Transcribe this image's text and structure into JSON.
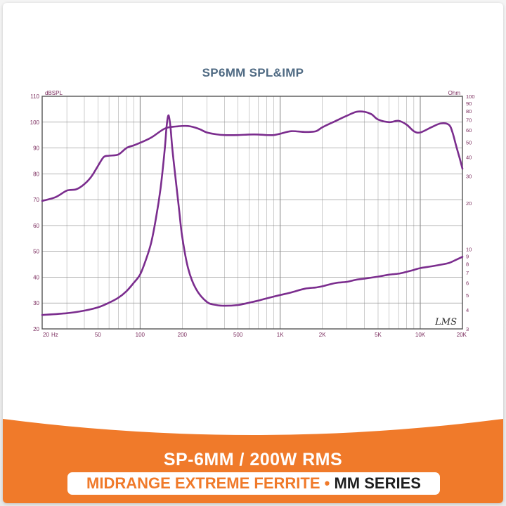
{
  "chart_data": {
    "type": "line",
    "title": "SP6MM SPL&IMP",
    "x_scale": "log",
    "xlim": [
      20,
      20000
    ],
    "x_ticks": [
      {
        "value": 20,
        "label": "20"
      },
      {
        "value": 50,
        "label": "50"
      },
      {
        "value": 100,
        "label": "100"
      },
      {
        "value": 200,
        "label": "200"
      },
      {
        "value": 500,
        "label": "500"
      },
      {
        "value": 1000,
        "label": "1K"
      },
      {
        "value": 2000,
        "label": "2K"
      },
      {
        "value": 5000,
        "label": "5K"
      },
      {
        "value": 10000,
        "label": "10K"
      },
      {
        "value": 20000,
        "label": "20K"
      }
    ],
    "x_unit": "Hz",
    "y_left": {
      "label": "dBSPL",
      "lim": [
        20,
        110
      ],
      "ticks": [
        20,
        30,
        40,
        50,
        60,
        70,
        80,
        90,
        100,
        110
      ]
    },
    "y_right": {
      "label": "Ohm",
      "scale": "log",
      "lim": [
        3,
        100
      ],
      "ticks": [
        3,
        4,
        5,
        6,
        7,
        8,
        9,
        10,
        20,
        30,
        40,
        50,
        60,
        70,
        80,
        90,
        100
      ]
    },
    "grid": true,
    "watermark": "LMS",
    "series": [
      {
        "color": "#7b2d8e",
        "axis": "left",
        "x": [
          20,
          25,
          30,
          35,
          40,
          45,
          50,
          55,
          60,
          70,
          80,
          90,
          100,
          120,
          150,
          180,
          220,
          260,
          300,
          350,
          400,
          500,
          600,
          700,
          800,
          900,
          1000,
          1200,
          1500,
          1800,
          2000,
          2500,
          3000,
          3500,
          4000,
          4500,
          5000,
          6000,
          7000,
          8000,
          9000,
          10000,
          12000,
          14000,
          16000,
          17000,
          18000,
          19000,
          20000
        ],
        "y": [
          69.5,
          71,
          73.5,
          74,
          76,
          79,
          83,
          86.5,
          87,
          87.5,
          90,
          91,
          92,
          94,
          97.5,
          98.3,
          98.5,
          97.5,
          96,
          95.3,
          95,
          95,
          95.2,
          95.2,
          95,
          95,
          95.5,
          96.5,
          96.2,
          96.5,
          98,
          100.5,
          102.5,
          104,
          104,
          103,
          101,
          100,
          100.5,
          99,
          96.5,
          96,
          98,
          99.5,
          99,
          96,
          91,
          86.5,
          82
        ]
      },
      {
        "color": "#7b2d8e",
        "axis": "right",
        "x": [
          20,
          30,
          40,
          50,
          60,
          70,
          80,
          90,
          100,
          110,
          120,
          130,
          140,
          150,
          155,
          160,
          165,
          170,
          180,
          190,
          200,
          220,
          250,
          300,
          350,
          400,
          500,
          600,
          700,
          800,
          1000,
          1200,
          1500,
          1800,
          2000,
          2500,
          3000,
          3500,
          4000,
          5000,
          6000,
          7000,
          8000,
          9000,
          10000,
          12000,
          14000,
          16000,
          18000,
          20000
        ],
        "y": [
          3.7,
          3.8,
          3.95,
          4.15,
          4.45,
          4.8,
          5.3,
          6,
          6.8,
          8.5,
          11,
          16,
          25,
          45,
          65,
          75,
          62,
          45,
          28,
          18,
          12,
          7.5,
          5.5,
          4.5,
          4.3,
          4.25,
          4.3,
          4.45,
          4.6,
          4.75,
          5,
          5.2,
          5.5,
          5.6,
          5.7,
          6,
          6.1,
          6.3,
          6.4,
          6.6,
          6.8,
          6.9,
          7.1,
          7.3,
          7.5,
          7.7,
          7.9,
          8.1,
          8.5,
          8.9
        ]
      }
    ]
  },
  "footer": {
    "title": "SP-6MM / 200W RMS",
    "line_orange": "MIDRANGE EXTREME FERRITE",
    "separator": "•",
    "line_dark": "MM SERIES",
    "background_color": "#f07a2a"
  }
}
